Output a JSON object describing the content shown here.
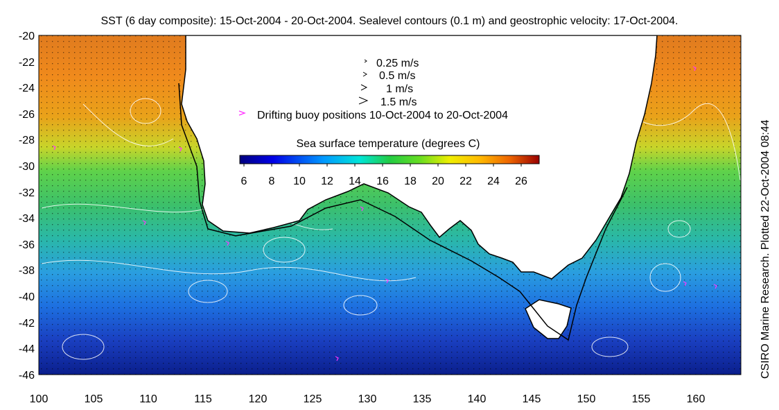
{
  "title": "SST (6 day composite): 15-Oct-2004 - 20-Oct-2004. Sealevel contours (0.1 m) and geostrophic velocity: 17-Oct-2004.",
  "credit": "CSIRO Marine Research. Plotted 22-Oct-2004 08:44",
  "map": {
    "lon_range": [
      100,
      164
    ],
    "lat_range": [
      -46,
      -20
    ],
    "lon_ticks": [
      "100",
      "105",
      "110",
      "115",
      "120",
      "125",
      "130",
      "135",
      "140",
      "145",
      "150",
      "155",
      "160"
    ],
    "lat_ticks": [
      "-20",
      "-22",
      "-24",
      "-26",
      "-28",
      "-30",
      "-32",
      "-34",
      "-36",
      "-38",
      "-40",
      "-42",
      "-44",
      "-46"
    ]
  },
  "velocity_legend": [
    {
      "label": "0.25 m/s",
      "speed": 0.25
    },
    {
      "label": "0.5 m/s",
      "speed": 0.5
    },
    {
      "label": "1 m/s",
      "speed": 1
    },
    {
      "label": "1.5 m/s",
      "speed": 1.5
    }
  ],
  "buoy_label": "Drifting buoy positions 10-Oct-2004 to 20-Oct-2004",
  "colorbar": {
    "title": "Sea surface temperature (degrees C)",
    "min": 5.7,
    "max": 27.3,
    "ticks": [
      "6",
      "8",
      "10",
      "12",
      "14",
      "16",
      "18",
      "20",
      "22",
      "24",
      "26"
    ]
  },
  "colors": {
    "land": "#ffffff",
    "coast": "#000000",
    "contour": "#ffffff",
    "buoy": "#ff33ff",
    "sst_warm": "#d2691e",
    "sst_cold": "#0a1e8c"
  }
}
